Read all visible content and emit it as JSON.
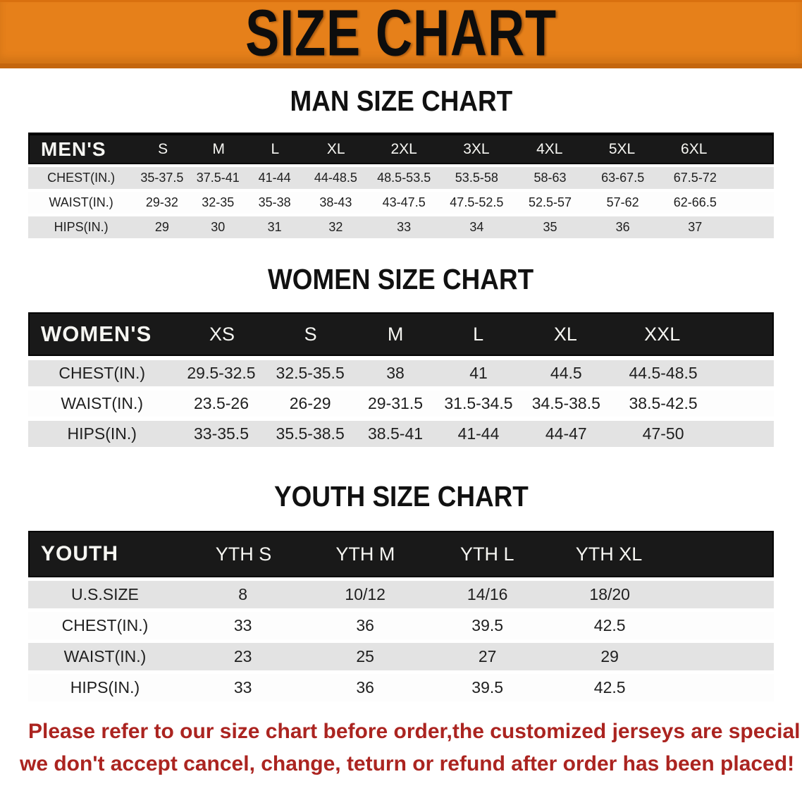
{
  "banner": {
    "title": "SIZE CHART",
    "bg_color": "#E6801A",
    "title_color": "#0D0D0D"
  },
  "man": {
    "heading": "MAN SIZE CHART",
    "table": {
      "id": "man",
      "label": "MEN'S",
      "columns": [
        "S",
        "M",
        "L",
        "XL",
        "2XL",
        "3XL",
        "4XL",
        "5XL",
        "6XL"
      ],
      "rows": [
        {
          "label": "CHEST(IN.)",
          "values": [
            "35-37.5",
            "37.5-41",
            "41-44",
            "44-48.5",
            "48.5-53.5",
            "53.5-58",
            "58-63",
            "63-67.5",
            "67.5-72"
          ]
        },
        {
          "label": "WAIST(IN.)",
          "values": [
            "29-32",
            "32-35",
            "35-38",
            "38-43",
            "43-47.5",
            "47.5-52.5",
            "52.5-57",
            "57-62",
            "62-66.5"
          ]
        },
        {
          "label": "HIPS(IN.)",
          "values": [
            "29",
            "30",
            "31",
            "32",
            "33",
            "34",
            "35",
            "36",
            "37"
          ]
        }
      ]
    }
  },
  "women": {
    "heading": "WOMEN SIZE CHART",
    "table": {
      "id": "women",
      "label": "WOMEN'S",
      "columns": [
        "XS",
        "S",
        "M",
        "L",
        "XL",
        "XXL"
      ],
      "rows": [
        {
          "label": "CHEST(IN.)",
          "values": [
            "29.5-32.5",
            "32.5-35.5",
            "38",
            "41",
            "44.5",
            "44.5-48.5"
          ]
        },
        {
          "label": "WAIST(IN.)",
          "values": [
            "23.5-26",
            "26-29",
            "29-31.5",
            "31.5-34.5",
            "34.5-38.5",
            "38.5-42.5"
          ]
        },
        {
          "label": "HIPS(IN.)",
          "values": [
            "33-35.5",
            "35.5-38.5",
            "38.5-41",
            "41-44",
            "44-47",
            "47-50"
          ]
        }
      ]
    }
  },
  "youth": {
    "heading": "YOUTH SIZE CHART",
    "table": {
      "id": "youth",
      "label": "YOUTH",
      "columns": [
        "YTH S",
        "YTH M",
        "YTH L",
        "YTH XL"
      ],
      "rows": [
        {
          "label": "U.S.SIZE",
          "values": [
            "8",
            "10/12",
            "14/16",
            "18/20"
          ]
        },
        {
          "label": "CHEST(IN.)",
          "values": [
            "33",
            "36",
            "39.5",
            "42.5"
          ]
        },
        {
          "label": "WAIST(IN.)",
          "values": [
            "23",
            "25",
            "27",
            "29"
          ]
        },
        {
          "label": "HIPS(IN.)",
          "values": [
            "33",
            "36",
            "39.5",
            "42.5"
          ]
        }
      ]
    }
  },
  "note": {
    "line1": "Please refer to our size chart before order,the customized jerseys are special products,",
    "line2": "we don't accept cancel, change, teturn or refund after order has been placed!",
    "color": "#AB2420"
  },
  "colors": {
    "banner_orange": "#E6801A",
    "header_black": "#191919",
    "row_shade_gray": "#E3E3E3",
    "note_red": "#AB2420"
  }
}
